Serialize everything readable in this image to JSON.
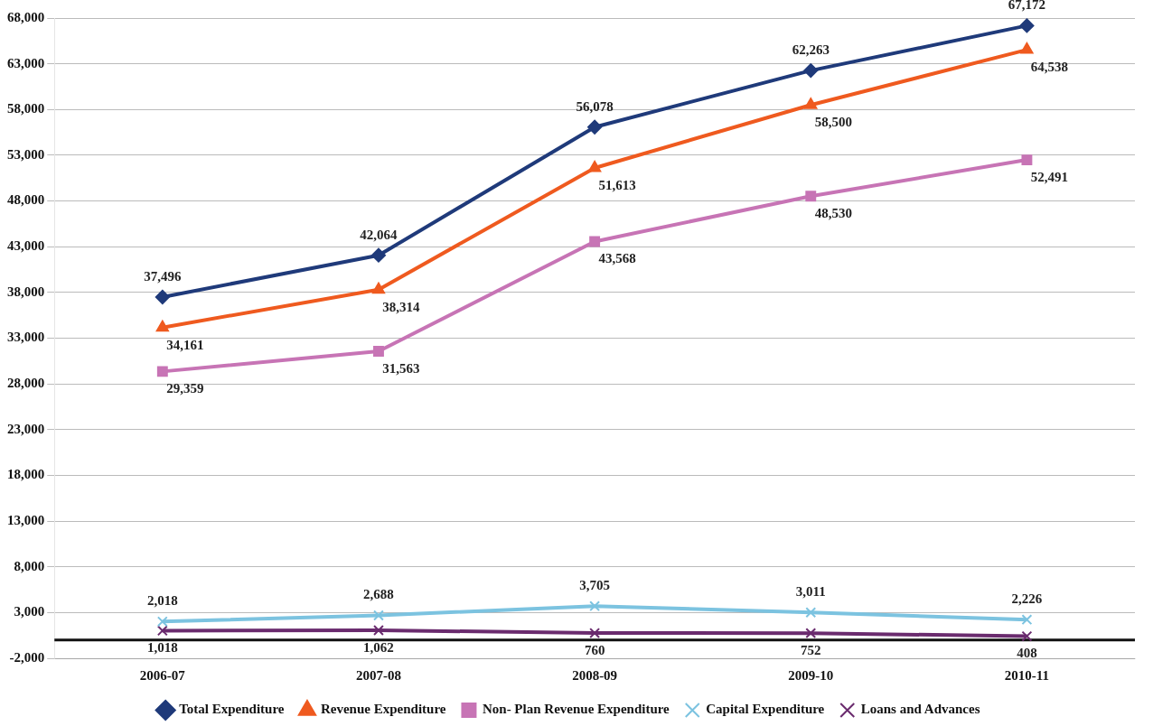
{
  "chart_data": {
    "type": "line",
    "categories": [
      "2006-07",
      "2007-08",
      "2008-09",
      "2009-10",
      "2010-11"
    ],
    "series": [
      {
        "name": "Total Expenditure",
        "color": "#1f3a7a",
        "marker": "diamond",
        "values": [
          37496,
          42064,
          56078,
          62263,
          67172
        ],
        "value_labels": [
          "37,496",
          "42,064",
          "56,078",
          "62,263",
          "67,172"
        ]
      },
      {
        "name": "Revenue Expenditure",
        "color": "#ef5a1f",
        "marker": "triangle",
        "values": [
          34161,
          38314,
          51613,
          58500,
          64538
        ],
        "value_labels": [
          "34,161",
          "38,314",
          "51,613",
          "58,500",
          "64,538"
        ]
      },
      {
        "name": "Non- Plan Revenue Expenditure",
        "color": "#c774b5",
        "marker": "square",
        "values": [
          29359,
          31563,
          43568,
          48530,
          52491
        ],
        "value_labels": [
          "29,359",
          "31,563",
          "43,568",
          "48,530",
          "52,491"
        ]
      },
      {
        "name": "Capital Expenditure",
        "color": "#7cc3e0",
        "marker": "cross",
        "values": [
          2018,
          2688,
          3705,
          3011,
          2226
        ],
        "value_labels": [
          "2,018",
          "2,688",
          "3,705",
          "3,011",
          "2,226"
        ]
      },
      {
        "name": "Loans and Advances",
        "color": "#6a2b6e",
        "marker": "cross",
        "values": [
          1018,
          1062,
          760,
          752,
          408
        ],
        "value_labels": [
          "1,018",
          "1,062",
          "760",
          "752",
          "408"
        ]
      }
    ],
    "ylim": [
      -2000,
      68000
    ],
    "yticks": [
      {
        "value": -2000,
        "label": "-2,000"
      },
      {
        "value": 3000,
        "label": "3,000"
      },
      {
        "value": 8000,
        "label": "8,000"
      },
      {
        "value": 13000,
        "label": "13,000"
      },
      {
        "value": 18000,
        "label": "18,000"
      },
      {
        "value": 23000,
        "label": "23,000"
      },
      {
        "value": 28000,
        "label": "28,000"
      },
      {
        "value": 33000,
        "label": "33,000"
      },
      {
        "value": 38000,
        "label": "38,000"
      },
      {
        "value": 43000,
        "label": "43,000"
      },
      {
        "value": 48000,
        "label": "48,000"
      },
      {
        "value": 53000,
        "label": "53,000"
      },
      {
        "value": 58000,
        "label": "58,000"
      },
      {
        "value": 63000,
        "label": "63,000"
      },
      {
        "value": 68000,
        "label": "68,000"
      }
    ],
    "grid": "y",
    "legend": "bottom"
  }
}
